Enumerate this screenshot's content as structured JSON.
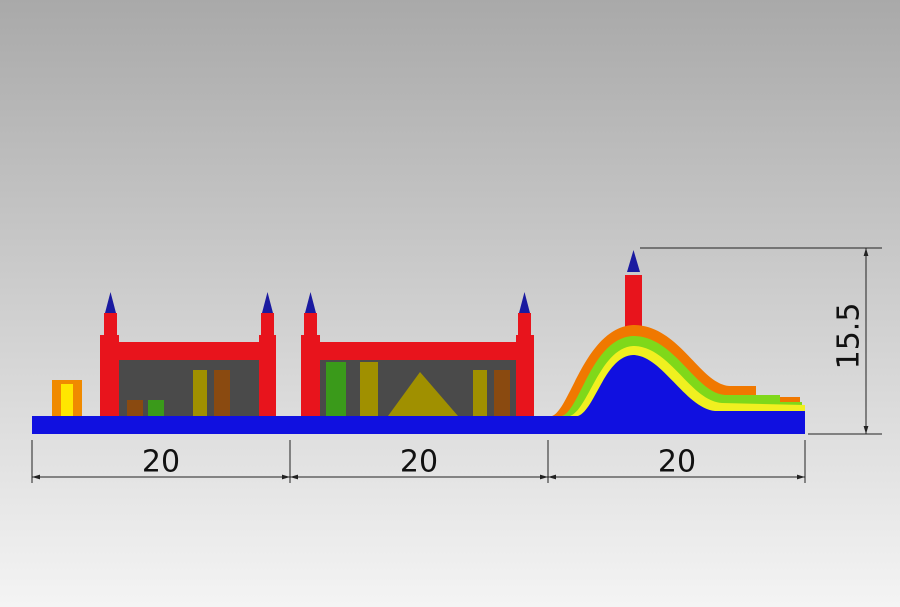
{
  "dimensions": {
    "widths": [
      20,
      20,
      20
    ],
    "height": 15.5
  }
}
